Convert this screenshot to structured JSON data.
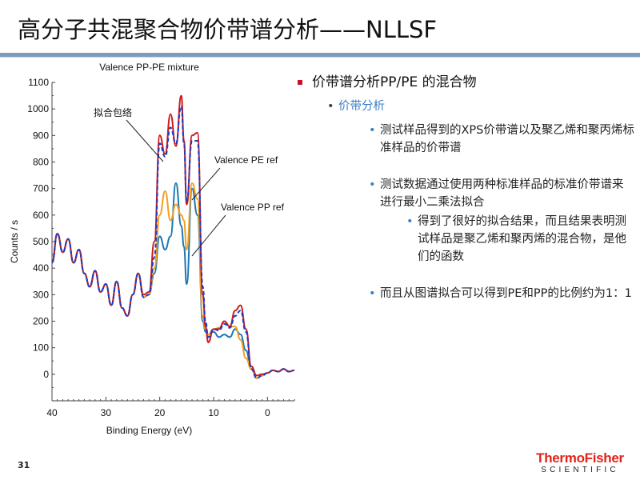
{
  "slide": {
    "title": "高分子共混聚合物价带谱分析——NLLSF",
    "page_number": "31"
  },
  "bullets": {
    "level1": "价带谱分析PP/PE 的混合物",
    "level2": "价带分析",
    "item1": "测试样品得到的XPS价带谱以及聚乙烯和聚丙烯标准样品的价带谱",
    "item2": "测试数据通过使用两种标准样品的标准价带谱来进行最小二乘法拟合",
    "sub1": "得到了很好的拟合结果，而且结果表明测试样品是聚乙烯和聚丙烯的混合物，是他们的函数",
    "item3": "而且从图谱拟合可以得到PE和PP的比例约为1：1"
  },
  "logo": {
    "line1": "ThermoFisher",
    "line2": "SCIENTIFIC",
    "color": "#e2231a"
  },
  "chart_data": {
    "type": "line",
    "title": "Valence PP-PE mixture",
    "xlabel": "Binding Energy (eV)",
    "ylabel": "Counts / s",
    "xlim": [
      40,
      -5
    ],
    "ylim": [
      -100,
      1100
    ],
    "xticks": [
      "40",
      "30",
      "20",
      "10",
      "0"
    ],
    "yticks": [
      "1100",
      "1000",
      "900",
      "800",
      "700",
      "600",
      "500",
      "400",
      "300",
      "200",
      "100",
      "0"
    ],
    "annotations": [
      "拟合包络",
      "Valence PE ref",
      "Valence PP ref"
    ],
    "series": [
      {
        "color": "#cc1a1a",
        "style": "solid",
        "x": [
          40,
          39,
          38,
          37,
          36,
          35,
          34,
          33,
          32,
          31,
          30,
          29,
          28,
          27,
          26,
          25,
          24,
          23,
          22,
          21,
          20,
          19,
          18,
          17,
          16,
          15.5,
          15,
          14,
          13,
          12,
          11.5,
          11,
          10,
          9,
          8,
          7,
          6,
          5,
          4,
          3,
          2,
          1,
          0,
          -1,
          -2,
          -3,
          -4,
          -5
        ],
        "y": [
          420,
          530,
          460,
          510,
          420,
          470,
          380,
          330,
          390,
          310,
          340,
          260,
          350,
          250,
          220,
          300,
          380,
          300,
          310,
          500,
          900,
          830,
          980,
          860,
          1050,
          880,
          640,
          900,
          910,
          300,
          180,
          120,
          170,
          170,
          200,
          180,
          240,
          260,
          170,
          30,
          -5,
          0,
          5,
          15,
          10,
          20,
          10,
          15
        ]
      },
      {
        "color": "#1a3ccc",
        "style": "dashed",
        "x": [
          40,
          39,
          38,
          37,
          36,
          35,
          34,
          33,
          32,
          31,
          30,
          29,
          28,
          27,
          26,
          25,
          24,
          23,
          22,
          21,
          20,
          19,
          18,
          17,
          16,
          15.5,
          15,
          14,
          13,
          12,
          11.5,
          11,
          10,
          9,
          8,
          7,
          6,
          5,
          4,
          3,
          2,
          1,
          0,
          -1,
          -2,
          -3,
          -4,
          -5
        ],
        "y": [
          420,
          530,
          460,
          510,
          420,
          470,
          380,
          330,
          390,
          310,
          340,
          260,
          350,
          250,
          220,
          300,
          380,
          290,
          300,
          440,
          870,
          820,
          930,
          870,
          1010,
          870,
          650,
          880,
          880,
          330,
          200,
          140,
          170,
          165,
          190,
          175,
          220,
          240,
          160,
          20,
          -15,
          -5,
          5,
          15,
          10,
          20,
          10,
          15
        ]
      },
      {
        "color": "#1f77b4",
        "style": "solid",
        "x": [
          40,
          39,
          38,
          37,
          36,
          35,
          34,
          33,
          32,
          31,
          30,
          29,
          28,
          27,
          26,
          25,
          24,
          23,
          22,
          21,
          20,
          19,
          18,
          17,
          16,
          15.5,
          15,
          14,
          13,
          12,
          11.5,
          11,
          10,
          9,
          8,
          7,
          6,
          5,
          4,
          3,
          2,
          1,
          0,
          -1,
          -2,
          -3,
          -4,
          -5
        ],
        "y": [
          420,
          530,
          460,
          510,
          420,
          470,
          380,
          330,
          390,
          310,
          340,
          260,
          350,
          250,
          220,
          300,
          380,
          290,
          300,
          380,
          520,
          470,
          520,
          720,
          560,
          480,
          340,
          700,
          600,
          200,
          160,
          150,
          160,
          140,
          150,
          140,
          170,
          150,
          90,
          20,
          -15,
          -5,
          5,
          15,
          10,
          20,
          10,
          15
        ]
      },
      {
        "color": "#f0a020",
        "style": "solid",
        "x": [
          40,
          39,
          38,
          37,
          36,
          35,
          34,
          33,
          32,
          31,
          30,
          29,
          28,
          27,
          26,
          25,
          24,
          23,
          22,
          21,
          20,
          19,
          18,
          17,
          16,
          15.5,
          15,
          14,
          13,
          12,
          11.5,
          11,
          10,
          9,
          8,
          7,
          6,
          5,
          4,
          3,
          2,
          1,
          0,
          -1,
          -2,
          -3,
          -4,
          -5
        ],
        "y": [
          420,
          530,
          460,
          510,
          420,
          470,
          380,
          330,
          390,
          310,
          340,
          260,
          350,
          250,
          220,
          300,
          380,
          290,
          300,
          400,
          600,
          690,
          580,
          640,
          600,
          580,
          470,
          720,
          660,
          220,
          170,
          150,
          170,
          175,
          200,
          180,
          180,
          130,
          60,
          20,
          -15,
          -5,
          5,
          15,
          10,
          20,
          10,
          15
        ]
      }
    ]
  }
}
